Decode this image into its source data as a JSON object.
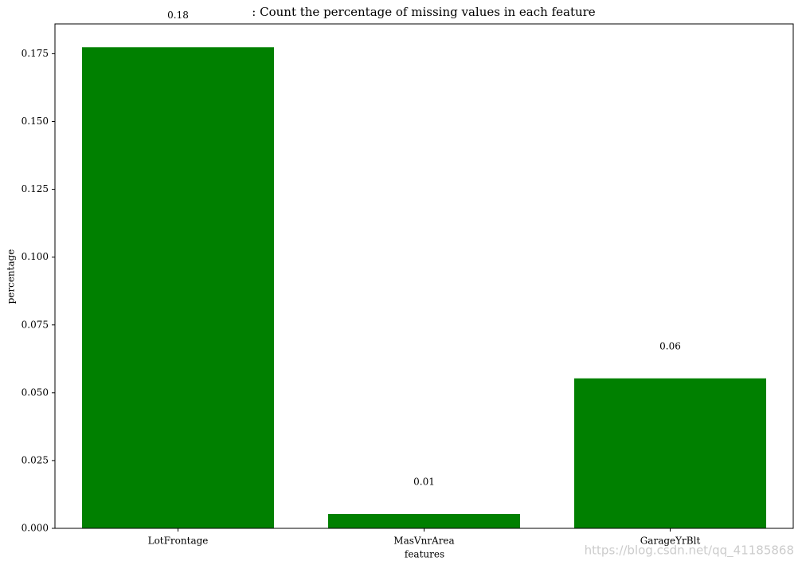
{
  "chart_data": {
    "type": "bar",
    "title": ": Count the percentage of missing values in each feature",
    "x_label": "features",
    "y_label": "percentage",
    "categories": [
      "LotFrontage",
      "MasVnrArea",
      "GarageYrBlt"
    ],
    "values": [
      0.1774,
      0.0053,
      0.0553
    ],
    "value_labels": [
      "0.18",
      "0.01",
      "0.06"
    ],
    "color": "#008000",
    "ylim": [
      0,
      0.186
    ],
    "yticks": [
      {
        "value": 0,
        "label": "0.000"
      },
      0.025,
      {
        "value": 0.05,
        "label": "0.050"
      },
      0.075,
      {
        "value": 0.1,
        "label": "0.100"
      },
      0.125,
      {
        "value": 0.15,
        "label": "0.150"
      },
      0.175
    ],
    "grid": false,
    "watermark": "https://blog.csdn.net/qq_41185868"
  }
}
